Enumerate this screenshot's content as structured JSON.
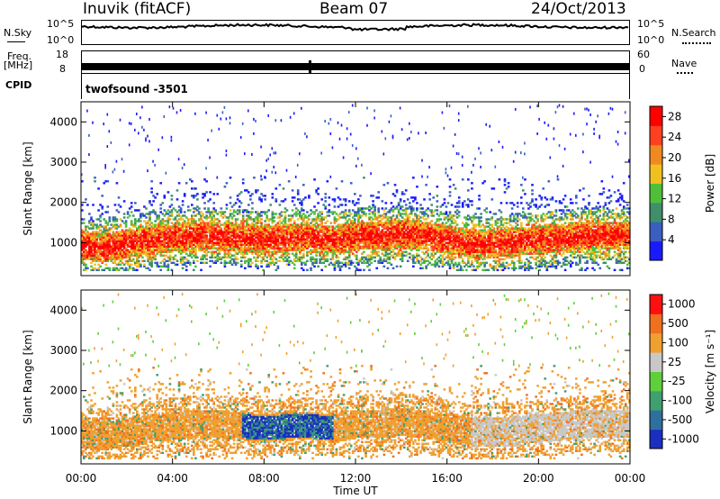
{
  "header": {
    "station": "Inuvik (fitACF)",
    "beam": "Beam 07",
    "date": "24/Oct/2013"
  },
  "aux": {
    "nsky_label": "N.Sky",
    "nsky_ticks": [
      "10^5",
      "10^0"
    ],
    "nsearch_label": "N.Search",
    "nsearch_ticks": [
      "10^5",
      "10^0"
    ],
    "freq_label": "Freq.",
    "freq_unit": "[MHz]",
    "freq_ticks": [
      "18",
      "8"
    ],
    "nave_label": "Nave",
    "nave_ticks": [
      "60",
      "0"
    ],
    "cpid_label": "CPID",
    "cpid_value": "twofsound -3501"
  },
  "chart_data": [
    {
      "type": "heatmap",
      "title": "",
      "xlabel": "Time UT",
      "ylabel": "Slant Range [km]",
      "xlim": [
        0,
        24
      ],
      "ylim": [
        180,
        4500
      ],
      "x_ticks": [
        "00:00",
        "04:00",
        "08:00",
        "12:00",
        "16:00",
        "20:00",
        "00:00"
      ],
      "y_ticks": [
        1000,
        2000,
        3000,
        4000
      ],
      "colorbar": {
        "label": "Power [dB]",
        "ticks": [
          4,
          8,
          12,
          16,
          20,
          24,
          28
        ],
        "range": [
          0,
          30
        ],
        "colors": [
          "#1a1aff",
          "#3a5fc0",
          "#3e8f6a",
          "#4fbf3a",
          "#f0c020",
          "#f08a20",
          "#ff4020",
          "#ff0000"
        ]
      },
      "main_band": {
        "hours": [
          0,
          1,
          2,
          3,
          4,
          5,
          6,
          7,
          8,
          9,
          10,
          11,
          12,
          13,
          14,
          15,
          16,
          17,
          18,
          19,
          20,
          21,
          22,
          23,
          24
        ],
        "center_km": [
          900,
          850,
          950,
          1050,
          1100,
          1150,
          1150,
          1100,
          1050,
          1100,
          1100,
          1050,
          1150,
          1150,
          1200,
          1150,
          1050,
          950,
          950,
          1000,
          1050,
          1100,
          1150,
          1150,
          1150
        ]
      }
    },
    {
      "type": "heatmap",
      "title": "",
      "xlabel": "Time UT",
      "ylabel": "Slant Range [km]",
      "xlim": [
        0,
        24
      ],
      "ylim": [
        180,
        4500
      ],
      "x_ticks": [
        "00:00",
        "04:00",
        "08:00",
        "12:00",
        "16:00",
        "20:00",
        "00:00"
      ],
      "y_ticks": [
        1000,
        2000,
        3000,
        4000
      ],
      "colorbar": {
        "label": "Velocity [m s⁻¹]",
        "ticks": [
          "1000",
          "500",
          "100",
          "25",
          "-25",
          "-100",
          "-500",
          "-1000"
        ],
        "colors": [
          "#1a2fc0",
          "#2f6f9f",
          "#3f9f6f",
          "#5fcf3a",
          "#c8c8c8",
          "#f0a030",
          "#f07020",
          "#ff1010"
        ]
      },
      "main_band": {
        "hours": [
          0,
          1,
          2,
          3,
          4,
          5,
          6,
          7,
          8,
          9,
          10,
          11,
          12,
          13,
          14,
          15,
          16,
          17,
          18,
          19,
          20,
          21,
          22,
          23,
          24
        ],
        "center_km": [
          900,
          850,
          950,
          1050,
          1100,
          1150,
          1150,
          1100,
          1050,
          1100,
          1100,
          1050,
          1150,
          1150,
          1200,
          1150,
          1050,
          950,
          950,
          1000,
          1050,
          1100,
          1150,
          1150,
          1150
        ]
      }
    }
  ]
}
